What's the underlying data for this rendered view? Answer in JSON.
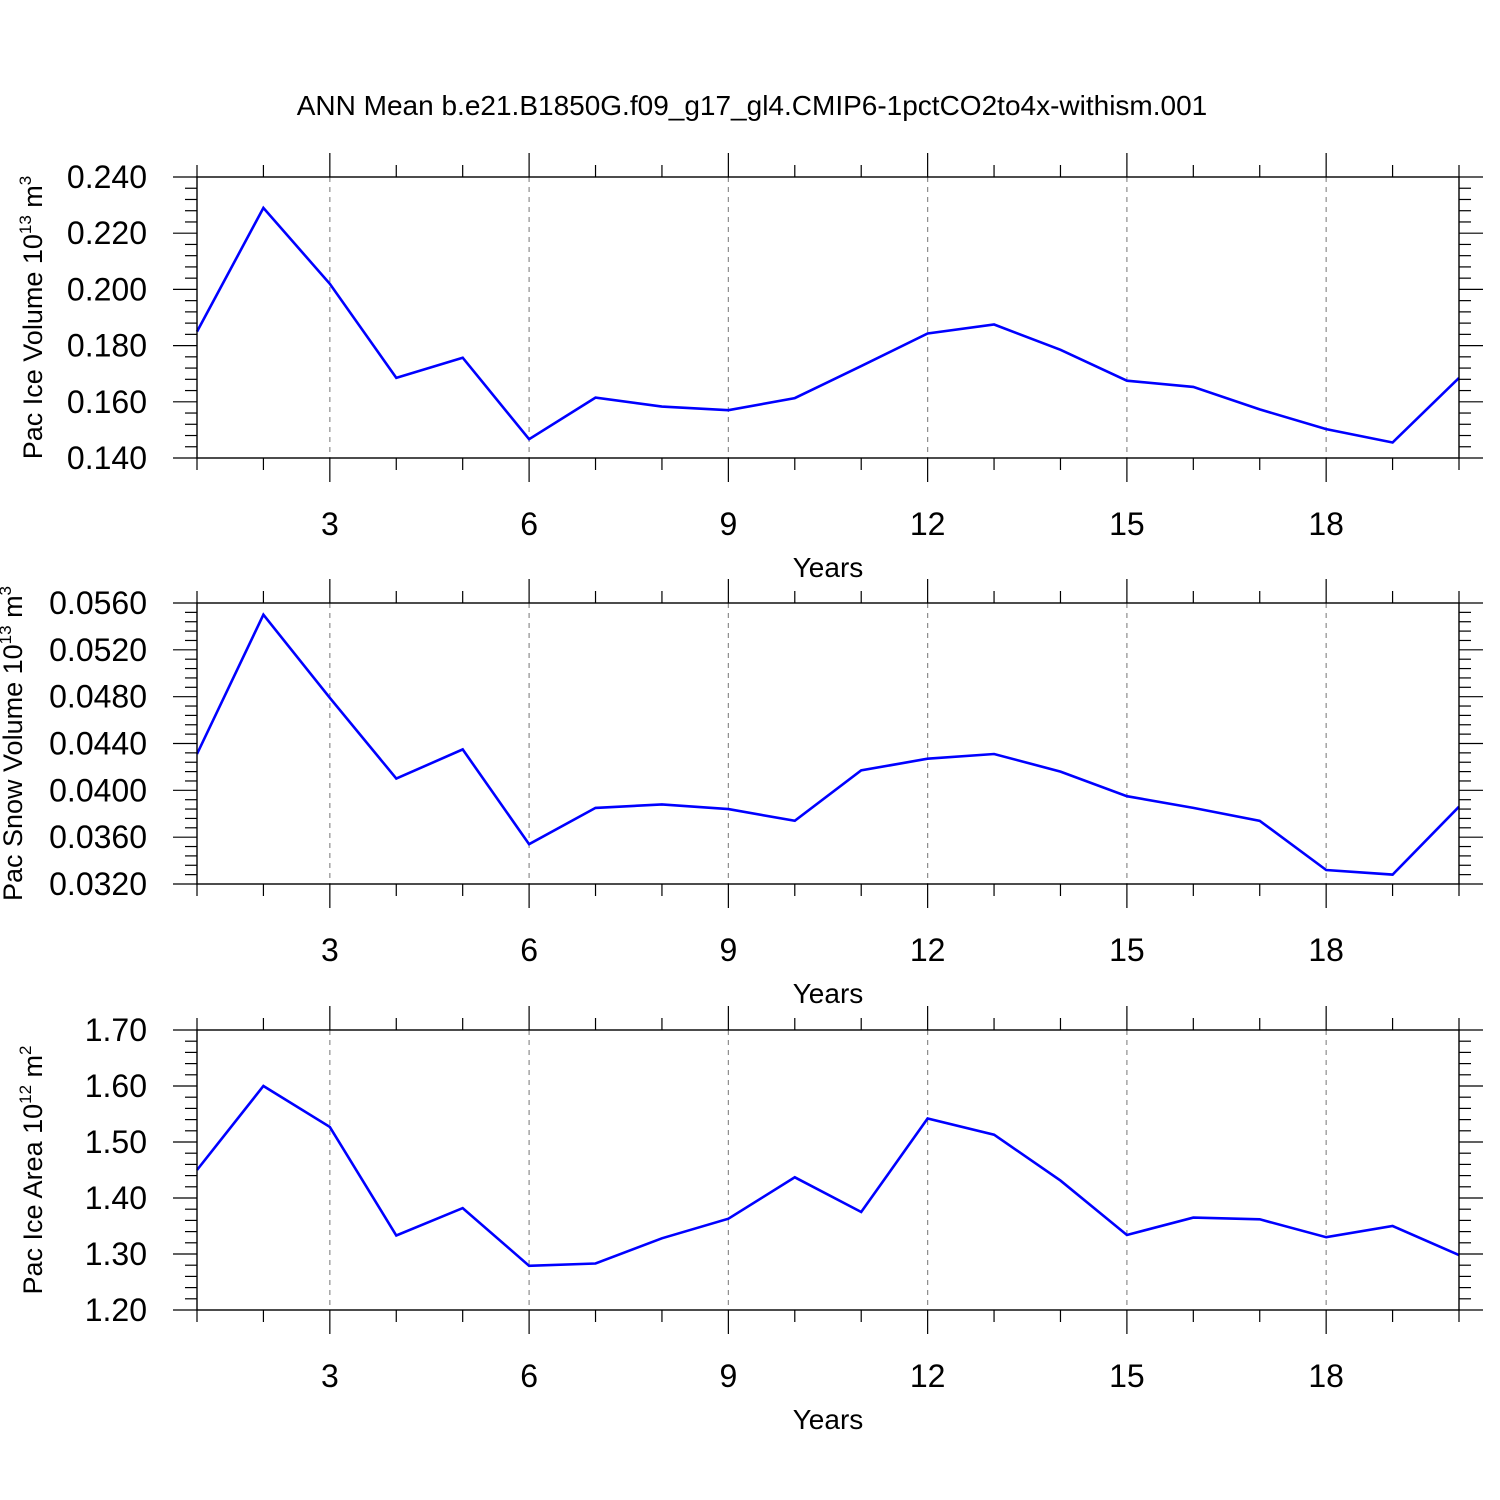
{
  "title": "ANN Mean b.e21.B1850G.f09_g17_gl4.CMIP6-1pctCO2to4x-withism.001",
  "colors": {
    "series": "#0000ff",
    "frame": "#000000",
    "grid": "#8c8c8c"
  },
  "chart_data": [
    {
      "type": "line",
      "name": "Pac Ice Volume",
      "ylabel_text": "Pac Ice Volume 10",
      "ylabel_exp": "13",
      "ylabel_unit": " m",
      "ylabel_unit_exp": "3",
      "xlabel": "Years",
      "x": [
        1,
        2,
        3,
        4,
        5,
        6,
        7,
        8,
        9,
        10,
        11,
        12,
        13,
        14,
        15,
        16,
        17,
        18,
        19,
        20
      ],
      "values": [
        0.185,
        0.229,
        0.202,
        0.1685,
        0.1757,
        0.1467,
        0.1615,
        0.1583,
        0.157,
        0.1613,
        0.1727,
        0.1843,
        0.1875,
        0.1785,
        0.1675,
        0.1653,
        0.1573,
        0.1503,
        0.1455,
        0.1685
      ],
      "xlim": [
        1,
        20
      ],
      "ylim": [
        0.14,
        0.24
      ],
      "yticks": [
        "0.140",
        "0.160",
        "0.180",
        "0.200",
        "0.220",
        "0.240"
      ],
      "xticks": [
        "3",
        "6",
        "9",
        "12",
        "15",
        "18"
      ],
      "grid": "x-dashed"
    },
    {
      "type": "line",
      "name": "Pac Snow Volume",
      "ylabel_text": "Pac Snow Volume 10",
      "ylabel_exp": "13",
      "ylabel_unit": " m",
      "ylabel_unit_exp": "3",
      "xlabel": "Years",
      "x": [
        1,
        2,
        3,
        4,
        5,
        6,
        7,
        8,
        9,
        10,
        11,
        12,
        13,
        14,
        15,
        16,
        17,
        18,
        19,
        20
      ],
      "values": [
        0.0431,
        0.055,
        0.0479,
        0.041,
        0.0435,
        0.0354,
        0.0385,
        0.0388,
        0.0384,
        0.0374,
        0.0417,
        0.0427,
        0.0431,
        0.0416,
        0.0395,
        0.0385,
        0.0374,
        0.0332,
        0.0328,
        0.0386
      ],
      "xlim": [
        1,
        20
      ],
      "ylim": [
        0.032,
        0.056
      ],
      "yticks": [
        "0.0320",
        "0.0360",
        "0.0400",
        "0.0440",
        "0.0480",
        "0.0520",
        "0.0560"
      ],
      "xticks": [
        "3",
        "6",
        "9",
        "12",
        "15",
        "18"
      ],
      "grid": "x-dashed"
    },
    {
      "type": "line",
      "name": "Pac Ice Area",
      "ylabel_text": "Pac Ice Area 10",
      "ylabel_exp": "12",
      "ylabel_unit": " m",
      "ylabel_unit_exp": "2",
      "xlabel": "Years",
      "x": [
        1,
        2,
        3,
        4,
        5,
        6,
        7,
        8,
        9,
        10,
        11,
        12,
        13,
        14,
        15,
        16,
        17,
        18,
        19,
        20
      ],
      "values": [
        1.45,
        1.6,
        1.527,
        1.333,
        1.382,
        1.279,
        1.283,
        1.328,
        1.363,
        1.437,
        1.375,
        1.542,
        1.513,
        1.431,
        1.334,
        1.365,
        1.362,
        1.33,
        1.35,
        1.298
      ],
      "xlim": [
        1,
        20
      ],
      "ylim": [
        1.2,
        1.7
      ],
      "yticks": [
        "1.20",
        "1.30",
        "1.40",
        "1.50",
        "1.60",
        "1.70"
      ],
      "xticks": [
        "3",
        "6",
        "9",
        "12",
        "15",
        "18"
      ],
      "grid": "x-dashed"
    }
  ]
}
